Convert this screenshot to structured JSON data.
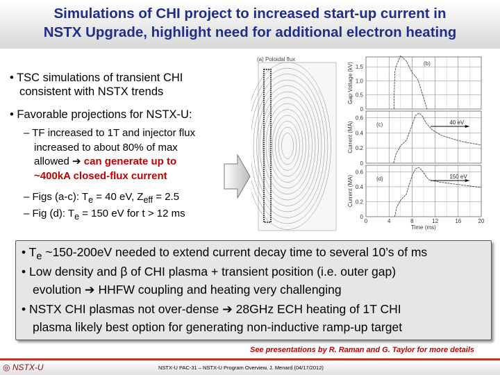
{
  "title": {
    "line1": "Simulations of CHI project to increased start-up current in",
    "line2": "NSTX Upgrade, highlight need for additional electron heating"
  },
  "bullets": [
    {
      "line1": "• TSC simulations of transient CHI",
      "line2": "consistent with NSTX trends"
    },
    {
      "line1": "• Favorable projections for NSTX-U:"
    }
  ],
  "subbullets": {
    "s1": [
      "– TF increased to 1T and injector flux",
      "increased to about 80% of max",
      "allowed ➔ "
    ],
    "s1_red": [
      "can generate up to",
      "~400kA closed-flux current"
    ],
    "s2": "– Figs (a-c):  T",
    "s2_sub": "e",
    "s2_mid": " = 40 eV, Z",
    "s2_sub2": "eff",
    "s2_end": " = 2.5",
    "s3": "– Fig (d): T",
    "s3_sub": "e",
    "s3_end": " = 150 eV for t > 12 ms"
  },
  "box": {
    "b1a": "• T",
    "b1sub": "e",
    "b1b": " ~150-200eV needed to extend current decay time to several 10’s of ms",
    "b2a": "• Low density and β of CHI plasma + transient position (i.e. outer gap)",
    "b2b": "evolution ➔  HHFW coupling and heating very challenging",
    "b3a": "• NSTX CHI plasmas not over-dense ➔ 28GHz ECH heating of 1T CHI",
    "b3b": "plasma likely best option for generating non-inductive ramp-up target"
  },
  "note": "See presentations by R. Raman and G. Taylor for more details",
  "footer": {
    "logo": "NSTX-U",
    "text": "NSTX-U PAC-31 – NSTX-U Program Overview, J. Menard  (04/17/2012)"
  },
  "chart_data": [
    {
      "type": "image",
      "title": "(a) Poloidal flux"
    },
    {
      "type": "line",
      "label": "(b)",
      "ylabel": "Gap Voltage (kV)",
      "yticks": [
        "0",
        "0.5",
        "1.0",
        "1.5"
      ],
      "ylim": [
        0,
        1.75
      ],
      "xlim": [
        0,
        20
      ],
      "x": [
        4.9,
        4.9,
        5.0,
        5.2,
        6.0,
        7.0,
        8.0,
        9.0,
        10.0,
        10.6
      ],
      "y": [
        0,
        0.5,
        1.3,
        1.5,
        1.9,
        1.7,
        1.3,
        1.05,
        0.4,
        0
      ]
    },
    {
      "type": "line",
      "label": "(c)",
      "annotation": "40 eV",
      "ylabel": "Current (MA)",
      "yticks": [
        "0",
        "0.2",
        "0.4",
        "0.6"
      ],
      "ylim": [
        0,
        0.65
      ],
      "xlim": [
        0,
        20
      ],
      "x": [
        4.8,
        5.2,
        6,
        7,
        8,
        8.6,
        9.2,
        9.8,
        10.5,
        11.5,
        13,
        15,
        17,
        20
      ],
      "y": [
        0,
        0.12,
        0.23,
        0.3,
        0.5,
        0.63,
        0.66,
        0.62,
        0.52,
        0.44,
        0.37,
        0.32,
        0.28,
        0.24
      ]
    },
    {
      "type": "line",
      "label": "(d)",
      "annotation": "150 eV",
      "ylabel": "Current (MA)",
      "yticks": [
        "0",
        "0.2",
        "0.4",
        "0.6"
      ],
      "ylim": [
        0,
        0.65
      ],
      "xlim": [
        0,
        20
      ],
      "x": [
        5,
        5.3,
        6,
        7,
        8,
        8.6,
        9.2,
        9.8,
        10.5,
        11,
        13,
        16,
        20
      ],
      "y": [
        0,
        0.12,
        0.22,
        0.3,
        0.55,
        0.64,
        0.66,
        0.61,
        0.53,
        0.49,
        0.46,
        0.43,
        0.39
      ],
      "xlabel": "Time (ms)",
      "xticks": [
        "0",
        "4",
        "8",
        "12",
        "16",
        "20"
      ]
    }
  ]
}
